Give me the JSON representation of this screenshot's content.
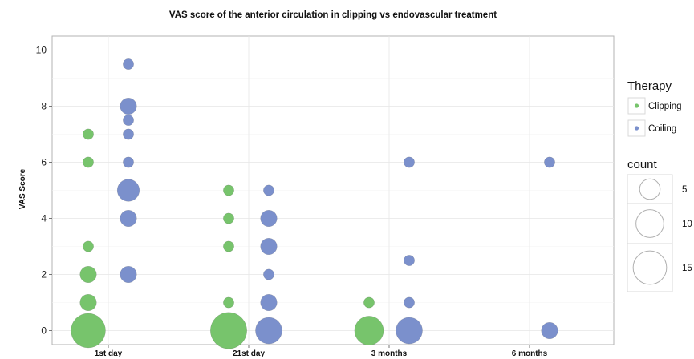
{
  "chart_data": {
    "type": "scatter",
    "title": "VAS score of the anterior circulation in clipping vs endovascular treatment",
    "xlabel": "",
    "ylabel": "VAS Score",
    "categories": [
      "1st day",
      "21st day",
      "3 months",
      "6 months"
    ],
    "ylim": [
      -0.5,
      10.5
    ],
    "yticks": [
      0,
      2,
      4,
      6,
      8,
      10
    ],
    "grid": true,
    "legend_placement": "right",
    "series": [
      {
        "name": "Clipping",
        "color": "#77c46c",
        "points": [
          {
            "x": "1st day",
            "y": 0,
            "count": 16
          },
          {
            "x": "1st day",
            "y": 1,
            "count": 3
          },
          {
            "x": "1st day",
            "y": 2,
            "count": 3
          },
          {
            "x": "1st day",
            "y": 3,
            "count": 1
          },
          {
            "x": "1st day",
            "y": 6,
            "count": 1
          },
          {
            "x": "1st day",
            "y": 7,
            "count": 1
          },
          {
            "x": "21st day",
            "y": 0,
            "count": 18
          },
          {
            "x": "21st day",
            "y": 1,
            "count": 1
          },
          {
            "x": "21st day",
            "y": 3,
            "count": 1
          },
          {
            "x": "21st day",
            "y": 4,
            "count": 1
          },
          {
            "x": "21st day",
            "y": 5,
            "count": 1
          },
          {
            "x": "3 months",
            "y": 0,
            "count": 11
          },
          {
            "x": "3 months",
            "y": 1,
            "count": 1
          }
        ]
      },
      {
        "name": "Coiling",
        "color": "#7b90cc",
        "points": [
          {
            "x": "1st day",
            "y": 2,
            "count": 3
          },
          {
            "x": "1st day",
            "y": 4,
            "count": 3
          },
          {
            "x": "1st day",
            "y": 5,
            "count": 6
          },
          {
            "x": "1st day",
            "y": 6,
            "count": 1
          },
          {
            "x": "1st day",
            "y": 7,
            "count": 1
          },
          {
            "x": "1st day",
            "y": 7.5,
            "count": 1
          },
          {
            "x": "1st day",
            "y": 8,
            "count": 3
          },
          {
            "x": "1st day",
            "y": 9.5,
            "count": 1
          },
          {
            "x": "21st day",
            "y": 0,
            "count": 9
          },
          {
            "x": "21st day",
            "y": 1,
            "count": 3
          },
          {
            "x": "21st day",
            "y": 2,
            "count": 1
          },
          {
            "x": "21st day",
            "y": 3,
            "count": 3
          },
          {
            "x": "21st day",
            "y": 4,
            "count": 3
          },
          {
            "x": "21st day",
            "y": 5,
            "count": 1
          },
          {
            "x": "3 months",
            "y": 0,
            "count": 9
          },
          {
            "x": "3 months",
            "y": 1,
            "count": 1
          },
          {
            "x": "3 months",
            "y": 2.5,
            "count": 1
          },
          {
            "x": "3 months",
            "y": 6,
            "count": 1
          },
          {
            "x": "6 months",
            "y": 0,
            "count": 3
          },
          {
            "x": "6 months",
            "y": 6,
            "count": 1
          }
        ]
      }
    ],
    "legend": {
      "therapy_title": "Therapy",
      "therapy_items": [
        "Clipping",
        "Coiling"
      ],
      "count_title": "count",
      "count_values": [
        5,
        10,
        15
      ]
    }
  }
}
